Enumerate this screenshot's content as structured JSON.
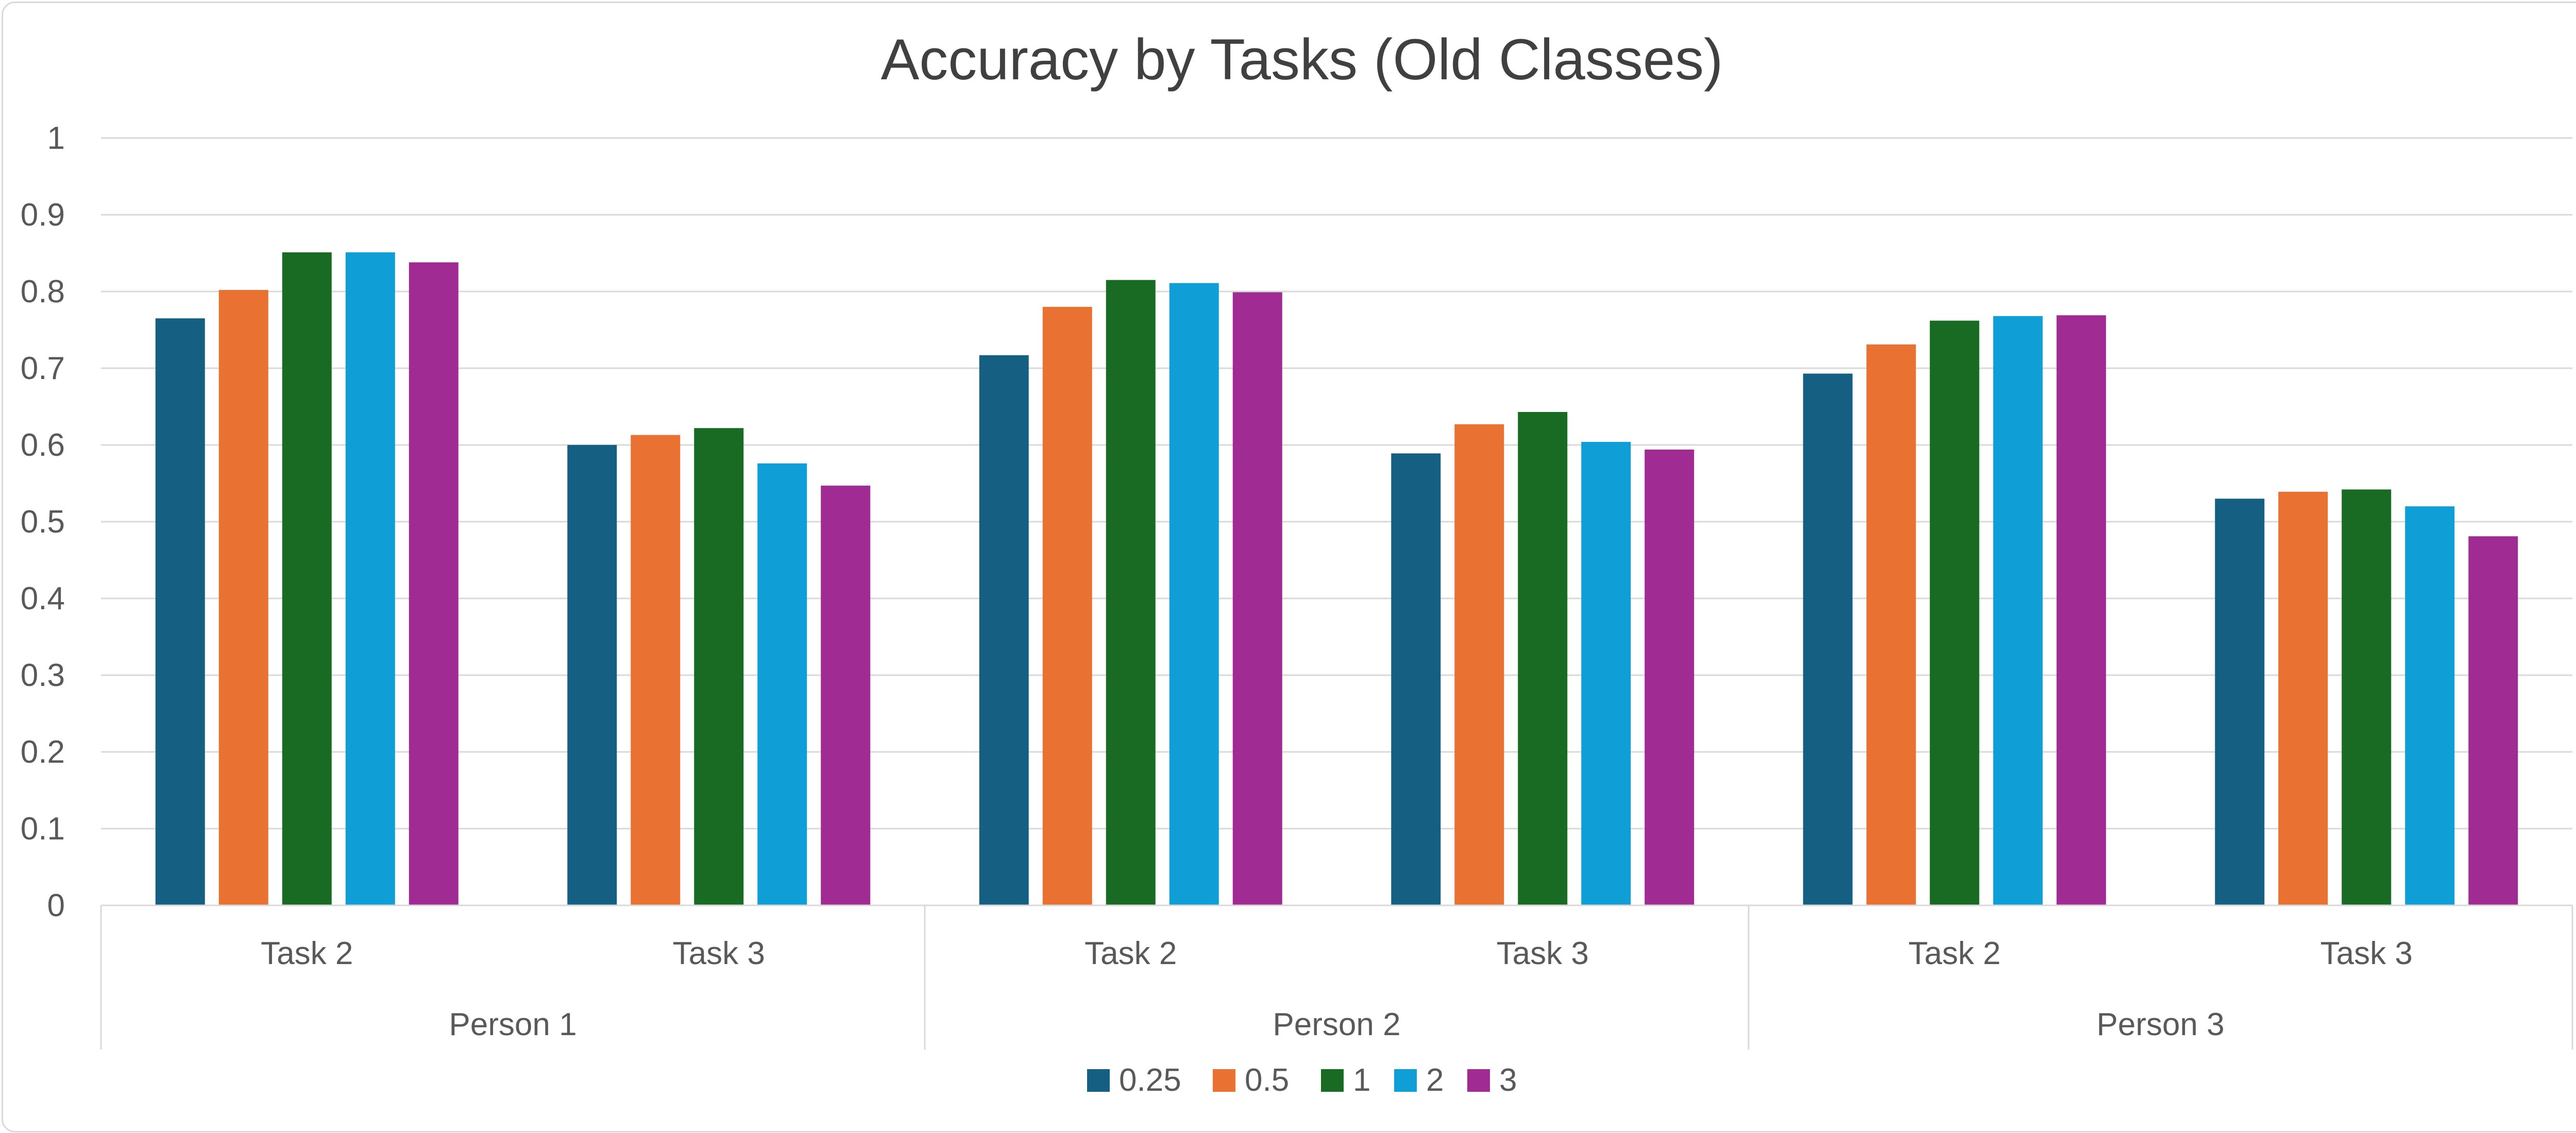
{
  "chart_data": {
    "type": "bar",
    "title": "Accuracy by Tasks (Old Classes)",
    "xlabel": "",
    "ylabel": "",
    "ylim": [
      0,
      1
    ],
    "yticks": [
      "0",
      "0.1",
      "0.2",
      "0.3",
      "0.4",
      "0.5",
      "0.6",
      "0.7",
      "0.8",
      "0.9",
      "1"
    ],
    "grid": true,
    "legend_position": "bottom",
    "groups": [
      "Person 1",
      "Person 2",
      "Person 3"
    ],
    "categories": [
      "Task 2",
      "Task 3",
      "Task 2",
      "Task 3",
      "Task 2",
      "Task 3"
    ],
    "series": [
      {
        "name": "0.25",
        "color": "#156082",
        "values": [
          0.765,
          0.6,
          0.717,
          0.589,
          0.693,
          0.53
        ]
      },
      {
        "name": "0.5",
        "color": "#e97132",
        "values": [
          0.802,
          0.613,
          0.78,
          0.627,
          0.731,
          0.539
        ]
      },
      {
        "name": "1",
        "color": "#196b24",
        "values": [
          0.851,
          0.622,
          0.815,
          0.643,
          0.762,
          0.542
        ]
      },
      {
        "name": "2",
        "color": "#0f9ed5",
        "values": [
          0.851,
          0.576,
          0.811,
          0.604,
          0.768,
          0.52
        ]
      },
      {
        "name": "3",
        "color": "#a02b93",
        "values": [
          0.838,
          0.547,
          0.799,
          0.594,
          0.769,
          0.481
        ]
      }
    ]
  }
}
